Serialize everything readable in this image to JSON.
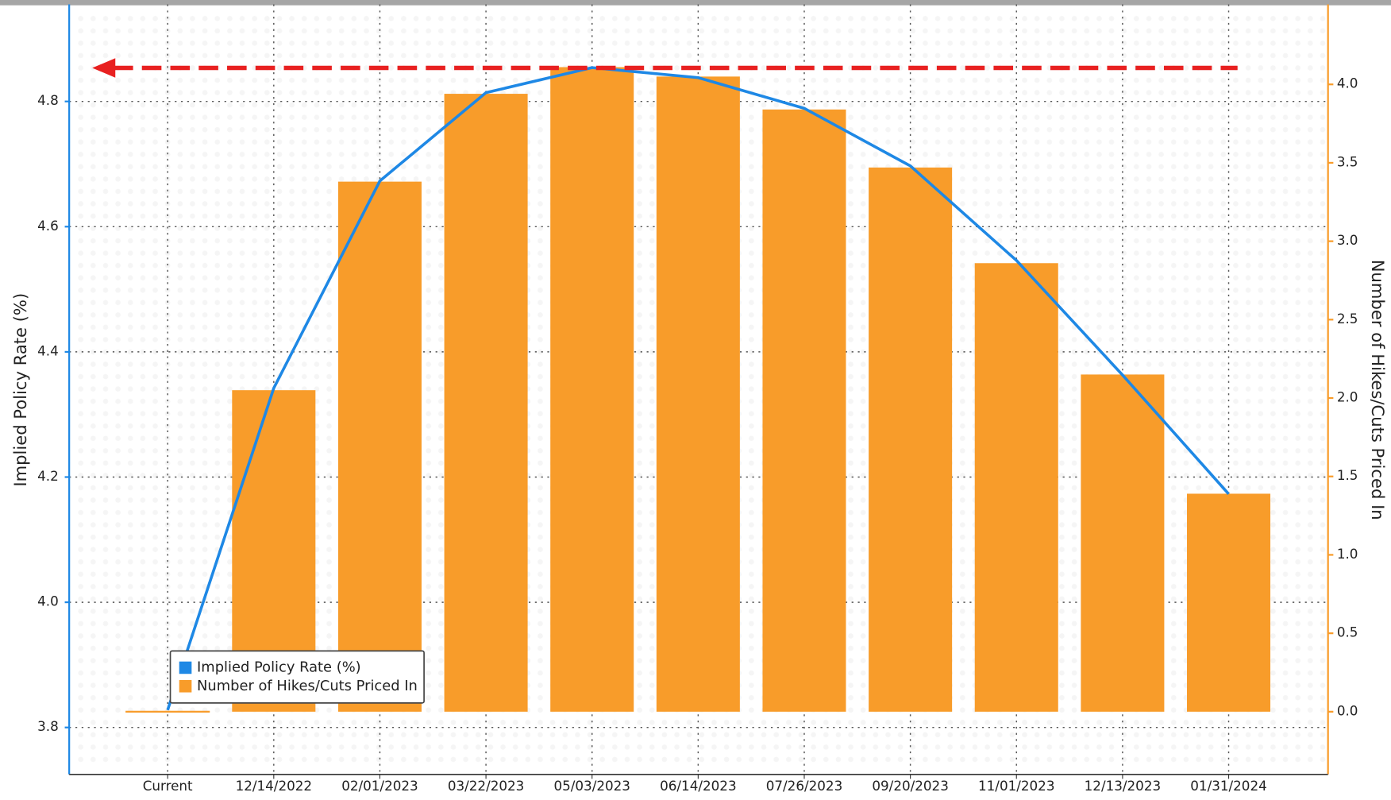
{
  "chart_data": {
    "type": "bar_line",
    "categories": [
      "Current",
      "12/14/2022",
      "02/01/2023",
      "03/22/2023",
      "05/03/2023",
      "06/14/2023",
      "07/26/2023",
      "09/20/2023",
      "11/01/2023",
      "12/13/2023",
      "01/31/2024"
    ],
    "series": [
      {
        "name": "Implied Policy Rate (%)",
        "type": "line",
        "color": "#1e88e5",
        "axis": "y",
        "values": [
          3.828,
          4.342,
          4.673,
          4.814,
          4.854,
          4.838,
          4.789,
          4.697,
          4.546,
          4.363,
          4.173
        ]
      },
      {
        "name": "Number of Hikes/Cuts Priced In",
        "type": "bar",
        "color": "#f89c2a",
        "axis": "y2",
        "values": [
          0.0,
          2.05,
          3.38,
          3.94,
          4.11,
          4.05,
          3.84,
          3.47,
          2.86,
          2.15,
          1.39
        ]
      }
    ],
    "ylabel": "Implied Policy Rate (%)",
    "y2label": "Number of Hikes/Cuts Priced In",
    "ylim": [
      3.725,
      4.955
    ],
    "yticks": [
      {
        "value": 3.8,
        "label": "3.8"
      },
      {
        "value": 4.0,
        "label": "4.0"
      },
      {
        "value": 4.2,
        "label": "4.2"
      },
      {
        "value": 4.4,
        "label": "4.4"
      },
      {
        "value": 4.6,
        "label": "4.6"
      },
      {
        "value": 4.8,
        "label": "4.8"
      }
    ],
    "y2lim": [
      -0.4,
      4.51
    ],
    "y2ticks": [
      {
        "value": 0,
        "label": "0.0"
      },
      0.5,
      {
        "value": 1,
        "label": "1.0"
      },
      1.5,
      {
        "value": 2,
        "label": "2.0"
      },
      2.5,
      {
        "value": 3,
        "label": "3.0"
      },
      3.5,
      {
        "value": 4,
        "label": "4.0"
      }
    ],
    "grid": true,
    "legend": "lower left"
  }
}
